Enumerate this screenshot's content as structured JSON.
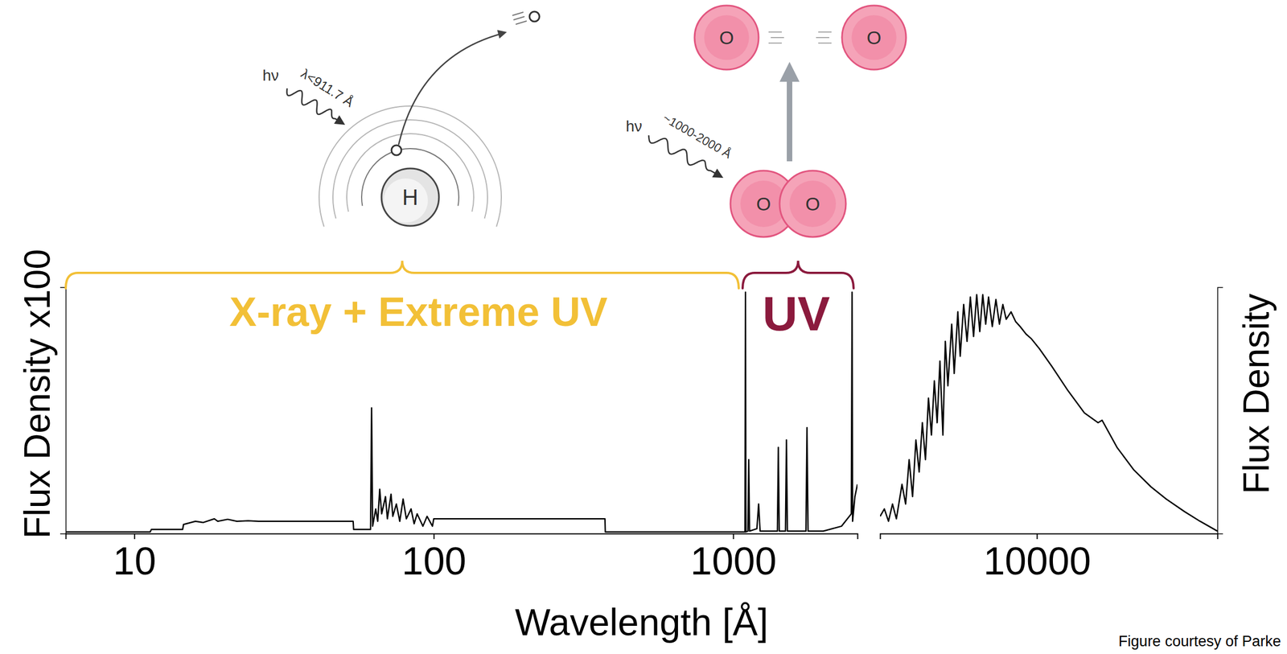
{
  "chart_data": [
    {
      "type": "line",
      "ylabel": "Flux Density x100",
      "xlabel": "Wavelength [Å]",
      "log": "x",
      "tick_labels": "x",
      "xlim": [
        5.9,
        2600
      ],
      "xticks": [
        10,
        100,
        1000
      ],
      "ylim": [
        0,
        1
      ],
      "x": [
        5.9,
        11.3,
        11.4,
        14.5,
        14.6,
        16,
        17,
        18.5,
        19,
        20.5,
        22,
        24,
        26,
        40,
        53.8,
        54,
        59,
        61.5,
        62,
        62.5,
        64,
        65,
        66,
        67,
        69,
        70,
        72,
        73,
        75,
        77,
        79,
        81,
        84,
        86,
        88,
        92,
        95,
        99,
        100,
        373,
        374,
        1095,
        1099,
        1103,
        1120,
        1127,
        1134,
        1200,
        1216,
        1230,
        1405,
        1415,
        1425,
        1495,
        1506,
        1517,
        1750,
        1764,
        1778,
        2000,
        2300,
        2480,
        2495,
        2505,
        2550,
        2600
      ],
      "series": [
        {
          "color": "#000000",
          "values": [
            0.007,
            0.007,
            0.017,
            0.017,
            0.037,
            0.05,
            0.045,
            0.06,
            0.05,
            0.058,
            0.05,
            0.052,
            0.05,
            0.05,
            0.05,
            0.017,
            0.017,
            0.017,
            0.51,
            0.03,
            0.1,
            0.05,
            0.18,
            0.08,
            0.15,
            0.06,
            0.16,
            0.07,
            0.12,
            0.05,
            0.14,
            0.06,
            0.1,
            0.04,
            0.08,
            0.03,
            0.07,
            0.03,
            0.06,
            0.06,
            0.007,
            0.007,
            0.98,
            0.007,
            0.01,
            0.3,
            0.01,
            0.02,
            0.12,
            0.01,
            0.01,
            0.35,
            0.01,
            0.01,
            0.38,
            0.01,
            0.01,
            0.43,
            0.01,
            0.01,
            0.03,
            0.08,
            0.98,
            0.05,
            0.15,
            0.2
          ]
        }
      ],
      "annotations": [
        {
          "text": "X-ray + Extreme UV",
          "color": "#f2c037"
        },
        {
          "text": "UV",
          "color": "#8b1a3d"
        }
      ]
    },
    {
      "type": "line",
      "ylabel": "Flux Density",
      "log": "x",
      "tick_labels": "x",
      "xlim": [
        3000,
        40000
      ],
      "xticks": [
        10000
      ],
      "ylim": [
        0,
        1
      ],
      "x": [
        3000,
        3100,
        3200,
        3300,
        3400,
        3550,
        3650,
        3750,
        3850,
        3950,
        4050,
        4150,
        4250,
        4350,
        4450,
        4550,
        4650,
        4750,
        4860,
        4950,
        5050,
        5200,
        5300,
        5450,
        5550,
        5700,
        5850,
        6000,
        6150,
        6300,
        6450,
        6600,
        6750,
        6900,
        7100,
        7300,
        7500,
        7700,
        7900,
        8200,
        8500,
        8800,
        9200,
        9600,
        10200,
        11200,
        12700,
        14400,
        16000,
        16500,
        18500,
        21000,
        24000,
        27000,
        31000,
        35000,
        40000
      ],
      "series": [
        {
          "color": "#000000",
          "values": [
            0.07,
            0.1,
            0.05,
            0.12,
            0.06,
            0.2,
            0.12,
            0.3,
            0.15,
            0.38,
            0.25,
            0.45,
            0.3,
            0.55,
            0.4,
            0.62,
            0.45,
            0.7,
            0.4,
            0.78,
            0.6,
            0.85,
            0.65,
            0.9,
            0.72,
            0.93,
            0.78,
            0.96,
            0.8,
            0.97,
            0.82,
            0.97,
            0.85,
            0.96,
            0.84,
            0.95,
            0.85,
            0.93,
            0.87,
            0.9,
            0.86,
            0.84,
            0.81,
            0.79,
            0.75,
            0.68,
            0.58,
            0.49,
            0.45,
            0.46,
            0.35,
            0.26,
            0.19,
            0.14,
            0.09,
            0.05,
            0.01
          ]
        }
      ]
    }
  ],
  "illustrations": {
    "hydrogen": {
      "nucleus": "H",
      "photon": "hν",
      "wavelength": "λ<911.7 Å"
    },
    "oxygen": {
      "atom": "O",
      "photon": "hν",
      "wavelength": "~1000-2000 Å"
    }
  },
  "credit": "Figure courtesy of Parke"
}
